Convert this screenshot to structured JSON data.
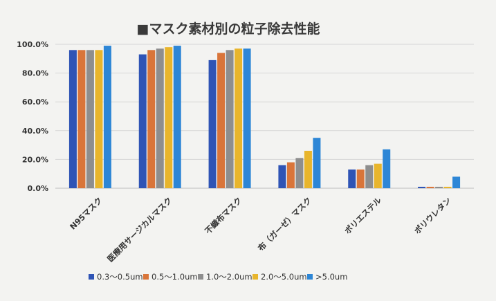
{
  "chart_data": {
    "type": "bar",
    "title": "■マスク素材別の粒子除去性能",
    "xlabel": "",
    "ylabel": "",
    "ylim": [
      0,
      100
    ],
    "ytick_labels": [
      "0.0%",
      "20.0%",
      "40.0%",
      "60.0%",
      "80.0%",
      "100.0%"
    ],
    "ytick_values": [
      0,
      20,
      40,
      60,
      80,
      100
    ],
    "grid": true,
    "legend_position": "bottom",
    "categories": [
      "N95マスク",
      "医療用サージカルマスク",
      "不織布マスク",
      "布（ガーゼ）マスク",
      "ポリエステル",
      "ポリウレタン"
    ],
    "series": [
      {
        "name": "0.3～0.5um",
        "color": "#2f54b5",
        "values": [
          96,
          93,
          89,
          16,
          13,
          1
        ]
      },
      {
        "name": "0.5～1.0um",
        "color": "#d9753a",
        "values": [
          96,
          96,
          94,
          18,
          13,
          1
        ]
      },
      {
        "name": "1.0～2.0um",
        "color": "#8e8e8e",
        "values": [
          96,
          97,
          96,
          21,
          16,
          1
        ]
      },
      {
        "name": "2.0～5.0um",
        "color": "#e8b52c",
        "values": [
          96,
          98,
          97,
          26,
          17,
          1
        ]
      },
      {
        "name": ">5.0um",
        "color": "#2d86d6",
        "values": [
          99,
          99,
          97,
          35,
          27,
          8
        ]
      }
    ]
  }
}
